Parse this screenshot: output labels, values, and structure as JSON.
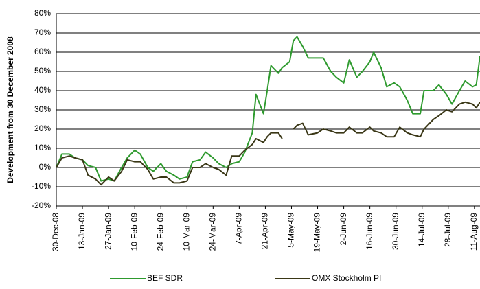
{
  "chart_data": {
    "type": "line",
    "y_label": "Development from 30 December 2008",
    "x": [
      "2008-12-30",
      "2009-01-02",
      "2009-01-06",
      "2009-01-09",
      "2009-01-13",
      "2009-01-16",
      "2009-01-20",
      "2009-01-23",
      "2009-01-27",
      "2009-01-30",
      "2009-02-03",
      "2009-02-06",
      "2009-02-10",
      "2009-02-13",
      "2009-02-17",
      "2009-02-20",
      "2009-02-24",
      "2009-02-27",
      "2009-03-03",
      "2009-03-06",
      "2009-03-10",
      "2009-03-13",
      "2009-03-17",
      "2009-03-20",
      "2009-03-24",
      "2009-03-27",
      "2009-03-31",
      "2009-04-03",
      "2009-04-07",
      "2009-04-10",
      "2009-04-14",
      "2009-04-16",
      "2009-04-20",
      "2009-04-22",
      "2009-04-24",
      "2009-04-28",
      "2009-04-30",
      "2009-05-04",
      "2009-05-06",
      "2009-05-08",
      "2009-05-11",
      "2009-05-14",
      "2009-05-19",
      "2009-05-22",
      "2009-05-26",
      "2009-05-29",
      "2009-06-02",
      "2009-06-05",
      "2009-06-09",
      "2009-06-12",
      "2009-06-16",
      "2009-06-18",
      "2009-06-22",
      "2009-06-25",
      "2009-06-29",
      "2009-07-02",
      "2009-07-06",
      "2009-07-09",
      "2009-07-13",
      "2009-07-15",
      "2009-07-20",
      "2009-07-23",
      "2009-07-27",
      "2009-07-30",
      "2009-08-03",
      "2009-08-06",
      "2009-08-10",
      "2009-08-12",
      "2009-08-14"
    ],
    "series": [
      {
        "name": "BEF SDR",
        "color": "#2e9a2e",
        "values": [
          0,
          7,
          7,
          5,
          4,
          1,
          0,
          -7,
          -6,
          -7,
          0,
          5,
          9,
          7,
          0,
          -2,
          2,
          -2,
          -4,
          -6,
          -5,
          3,
          4,
          8,
          5,
          2,
          0,
          2,
          3,
          8,
          18,
          38,
          28,
          40,
          53,
          49,
          52,
          55,
          66,
          68,
          63,
          57,
          57,
          57,
          50,
          47,
          44,
          56,
          47,
          50,
          55,
          60,
          52,
          42,
          44,
          42,
          35,
          28,
          28,
          40,
          40,
          43,
          38,
          33,
          40,
          45,
          42,
          43,
          58
        ]
      },
      {
        "name": "OMX Stockholm  PI",
        "color": "#3a3716",
        "values": [
          0,
          5,
          6,
          5,
          4,
          -4,
          -6,
          -9,
          -5,
          -7,
          -2,
          4,
          3,
          3,
          -1,
          -6,
          -5,
          -5,
          -8,
          -8,
          -7,
          0,
          0,
          2,
          0,
          -1,
          -4,
          6,
          6,
          9,
          12,
          15,
          13,
          16,
          18,
          18,
          15,
          null,
          20,
          22,
          23,
          17,
          18,
          20,
          19,
          18,
          18,
          21,
          18,
          18,
          21,
          19,
          18,
          16,
          16,
          21,
          18,
          17,
          16,
          20,
          25,
          27,
          30,
          29,
          33,
          34,
          33,
          31,
          34
        ]
      }
    ],
    "xlim": [
      "2008-12-30",
      "2009-08-14"
    ],
    "xticks": [
      {
        "value": "2008-12-30",
        "label": "30-Dec-08"
      },
      {
        "value": "2009-01-13",
        "label": "13-Jan-09"
      },
      {
        "value": "2009-01-27",
        "label": "27-Jan-09"
      },
      {
        "value": "2009-02-10",
        "label": "10-Feb-09"
      },
      {
        "value": "2009-02-24",
        "label": "24-Feb-09"
      },
      {
        "value": "2009-03-10",
        "label": "10-Mar-09"
      },
      {
        "value": "2009-03-24",
        "label": "24-Mar-09"
      },
      {
        "value": "2009-04-07",
        "label": "7-Apr-09"
      },
      {
        "value": "2009-04-21",
        "label": "21-Apr-09"
      },
      {
        "value": "2009-05-05",
        "label": "5-May-09"
      },
      {
        "value": "2009-05-19",
        "label": "19-May-09"
      },
      {
        "value": "2009-06-02",
        "label": "2-Jun-09"
      },
      {
        "value": "2009-06-16",
        "label": "16-Jun-09"
      },
      {
        "value": "2009-06-30",
        "label": "30-Jun-09"
      },
      {
        "value": "2009-07-14",
        "label": "14-Jul-09"
      },
      {
        "value": "2009-07-28",
        "label": "28-Jul-09"
      },
      {
        "value": "2009-08-11",
        "label": "11-Aug-09"
      }
    ],
    "ylim": [
      -20,
      80
    ],
    "yticks": [
      {
        "value": -20,
        "label": "-20%"
      },
      {
        "value": -10,
        "label": "-10%"
      },
      {
        "value": 0,
        "label": "0%"
      },
      {
        "value": 10,
        "label": "10%"
      },
      {
        "value": 20,
        "label": "20%"
      },
      {
        "value": 30,
        "label": "30%"
      },
      {
        "value": 40,
        "label": "40%"
      },
      {
        "value": 50,
        "label": "50%"
      },
      {
        "value": 60,
        "label": "60%"
      },
      {
        "value": 70,
        "label": "70%"
      },
      {
        "value": 80,
        "label": "80%"
      }
    ],
    "grid": true,
    "legend": "bottom"
  }
}
